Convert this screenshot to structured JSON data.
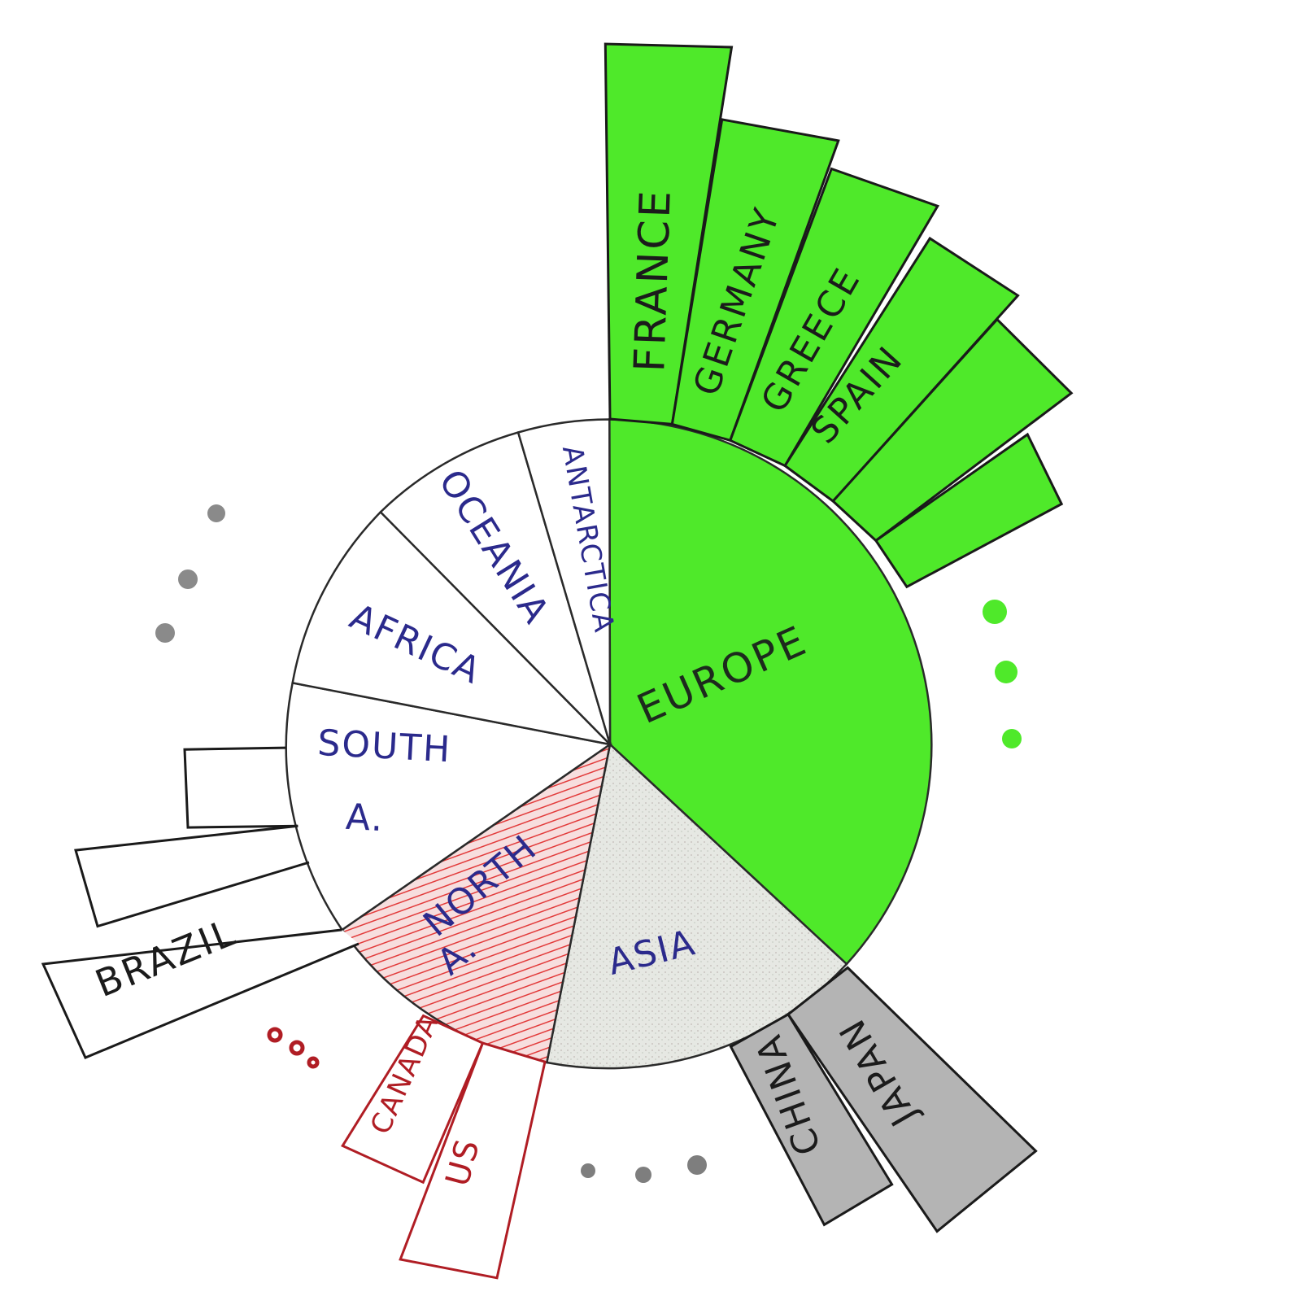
{
  "colors": {
    "europe": "#4fe92a",
    "north_america": "#e23a3a",
    "asia": "#d9dcd7",
    "ink": "#1a1a1a",
    "label_ink": "#2b2a8c",
    "red_ink": "#b01d24",
    "gray_bar": "#b4b4b4",
    "gray_dot": "#8a8a8a"
  },
  "continents": [
    {
      "id": "europe",
      "label": "EUROPE"
    },
    {
      "id": "asia",
      "label": "ASIA"
    },
    {
      "id": "north_america",
      "label": [
        "NORTH",
        "A."
      ]
    },
    {
      "id": "south_america",
      "label": [
        "SOUTH",
        "A."
      ]
    },
    {
      "id": "africa",
      "label": "AFRICA"
    },
    {
      "id": "oceania",
      "label": "OCEANIA"
    },
    {
      "id": "antarctica",
      "label": "ANTARCTICA"
    }
  ],
  "countries": {
    "europe": [
      "FRANCE",
      "GERMANY",
      "GREECE",
      "SPAIN"
    ],
    "asia": [
      "CHINA",
      "JAPAN"
    ],
    "north_america": [
      "CANADA",
      "US"
    ],
    "south_america": [
      "BRAZIL"
    ]
  }
}
